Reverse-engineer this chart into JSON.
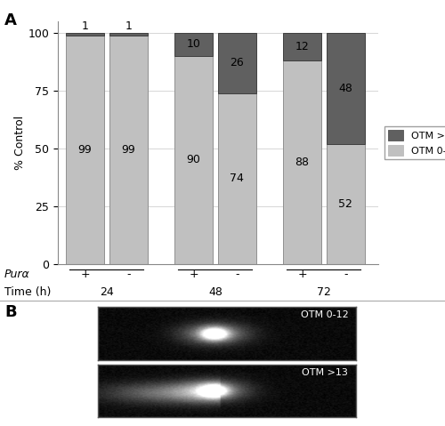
{
  "bar_groups": [
    {
      "label": "+",
      "time": "24",
      "otm_low": 99,
      "otm_high": 1
    },
    {
      "label": "-",
      "time": "24",
      "otm_low": 99,
      "otm_high": 1
    },
    {
      "label": "+",
      "time": "48",
      "otm_low": 90,
      "otm_high": 10
    },
    {
      "label": "-",
      "time": "48",
      "otm_low": 74,
      "otm_high": 26
    },
    {
      "label": "+",
      "time": "72",
      "otm_low": 88,
      "otm_high": 12
    },
    {
      "label": "-",
      "time": "72",
      "otm_low": 52,
      "otm_high": 48
    }
  ],
  "color_low": "#c0c0c0",
  "color_high": "#606060",
  "color_low_edge": "#909090",
  "color_high_edge": "#404040",
  "ylabel": "% Control",
  "yticks": [
    0,
    25,
    50,
    75,
    100
  ],
  "ylim": [
    0,
    105
  ],
  "legend_labels": [
    "OTM >13",
    "OTM 0-12"
  ],
  "pura_label": "Purα",
  "time_label": "Time (h)",
  "time_groups": [
    "24",
    "48",
    "72"
  ],
  "section_a_label": "A",
  "section_b_label": "B",
  "bar_width": 0.7,
  "background_color": "#ffffff",
  "grid_color": "#d0d0d0",
  "font_size_labels": 9,
  "font_size_numbers": 9,
  "font_size_axis": 9,
  "font_size_section": 13,
  "positions": [
    0.5,
    1.3,
    2.5,
    3.3,
    4.5,
    5.3
  ]
}
